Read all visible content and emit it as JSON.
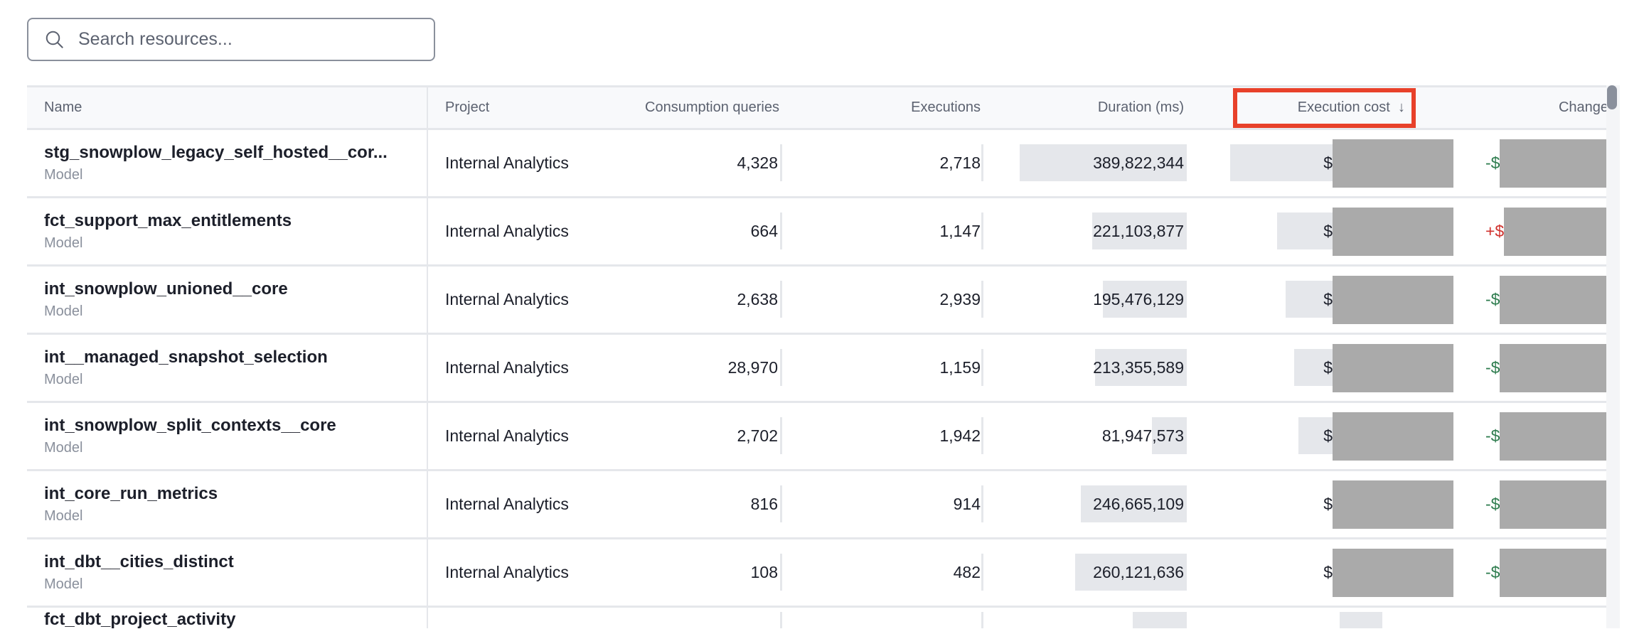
{
  "search": {
    "placeholder": "Search resources..."
  },
  "columns": {
    "name": "Name",
    "project": "Project",
    "consumption": "Consumption queries",
    "executions": "Executions",
    "duration": "Duration (ms)",
    "cost": "Execution cost",
    "cost_sort": "↓",
    "change": "Change"
  },
  "colors": {
    "negative": "#2f7d4f",
    "positive": "#d0312d",
    "highlight": "#e8412a",
    "bar": "#e5e7eb"
  },
  "rows": [
    {
      "name": "stg_snowplow_legacy_self_hosted__cor...",
      "type": "Model",
      "project": "Internal Analytics",
      "consumption": "4,328",
      "executions": "2,718",
      "duration": "389,822,344",
      "cost_prefix": "$",
      "change_prefix": "-$",
      "change_sign": "negative",
      "cost_level": 1.0
    },
    {
      "name": "fct_support_max_entitlements",
      "type": "Model",
      "project": "Internal Analytics",
      "consumption": "664",
      "executions": "1,147",
      "duration": "221,103,877",
      "cost_prefix": "$",
      "change_prefix": "+$",
      "change_sign": "positive",
      "cost_level": 0.78
    },
    {
      "name": "int_snowplow_unioned__core",
      "type": "Model",
      "project": "Internal Analytics",
      "consumption": "2,638",
      "executions": "2,939",
      "duration": "195,476,129",
      "cost_prefix": "$",
      "change_prefix": "-$",
      "change_sign": "negative",
      "cost_level": 0.74
    },
    {
      "name": "int__managed_snapshot_selection",
      "type": "Model",
      "project": "Internal Analytics",
      "consumption": "28,970",
      "executions": "1,159",
      "duration": "213,355,589",
      "cost_prefix": "$",
      "change_prefix": "-$",
      "change_sign": "negative",
      "cost_level": 0.7
    },
    {
      "name": "int_snowplow_split_contexts__core",
      "type": "Model",
      "project": "Internal Analytics",
      "consumption": "2,702",
      "executions": "1,942",
      "duration": "81,947,573",
      "cost_prefix": "$",
      "change_prefix": "-$",
      "change_sign": "negative",
      "cost_level": 0.68
    },
    {
      "name": "int_core_run_metrics",
      "type": "Model",
      "project": "Internal Analytics",
      "consumption": "816",
      "executions": "914",
      "duration": "246,665,109",
      "cost_prefix": "$",
      "change_prefix": "-$",
      "change_sign": "negative",
      "cost_level": 0.5
    },
    {
      "name": "int_dbt__cities_distinct",
      "type": "Model",
      "project": "Internal Analytics",
      "consumption": "108",
      "executions": "482",
      "duration": "260,121,636",
      "cost_prefix": "$",
      "change_prefix": "-$",
      "change_sign": "negative",
      "cost_level": 0.5
    },
    {
      "name": "fct_dbt_project_activity",
      "type": "",
      "project": "",
      "consumption": "",
      "executions": "",
      "duration": "",
      "cost_prefix": "",
      "change_prefix": "",
      "change_sign": "negative",
      "cost_level": 0.3
    }
  ]
}
